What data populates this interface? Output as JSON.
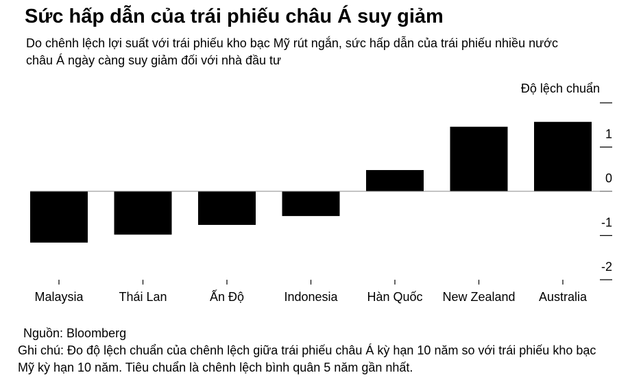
{
  "chart_data": {
    "type": "bar",
    "title": "Sức hấp dẫn của trái phiếu châu Á suy giảm",
    "subtitle": "Do chênh lệch lợi suất với trái phiếu kho bạc Mỹ rút ngắn, sức hấp dẫn của trái phiếu nhiều nước châu Á ngày càng suy giảm đối với nhà đầu tư",
    "y_label": "Độ lệch chuẩn",
    "categories": [
      "Malaysia",
      "Thái Lan",
      "Ấn Độ",
      "Indonesia",
      "Hàn Quốc",
      "New Zealand",
      "Australia"
    ],
    "values": [
      -1.16,
      -0.98,
      -0.76,
      -0.56,
      0.48,
      1.46,
      1.57
    ],
    "color": "#000000",
    "ylim": [
      -2,
      2
    ],
    "yticks": [
      -2,
      -1,
      0,
      1
    ],
    "source": "Nguồn: Bloomberg",
    "note": "Ghi chú: Đo độ lệch chuẩn của chênh lệch giữa trái phiếu châu Á kỳ hạn 10 năm so với trái phiếu kho bạc Mỹ kỳ hạn 10 năm. Tiêu chuẩn là chênh lệch bình quân 5 năm gần nhất."
  }
}
